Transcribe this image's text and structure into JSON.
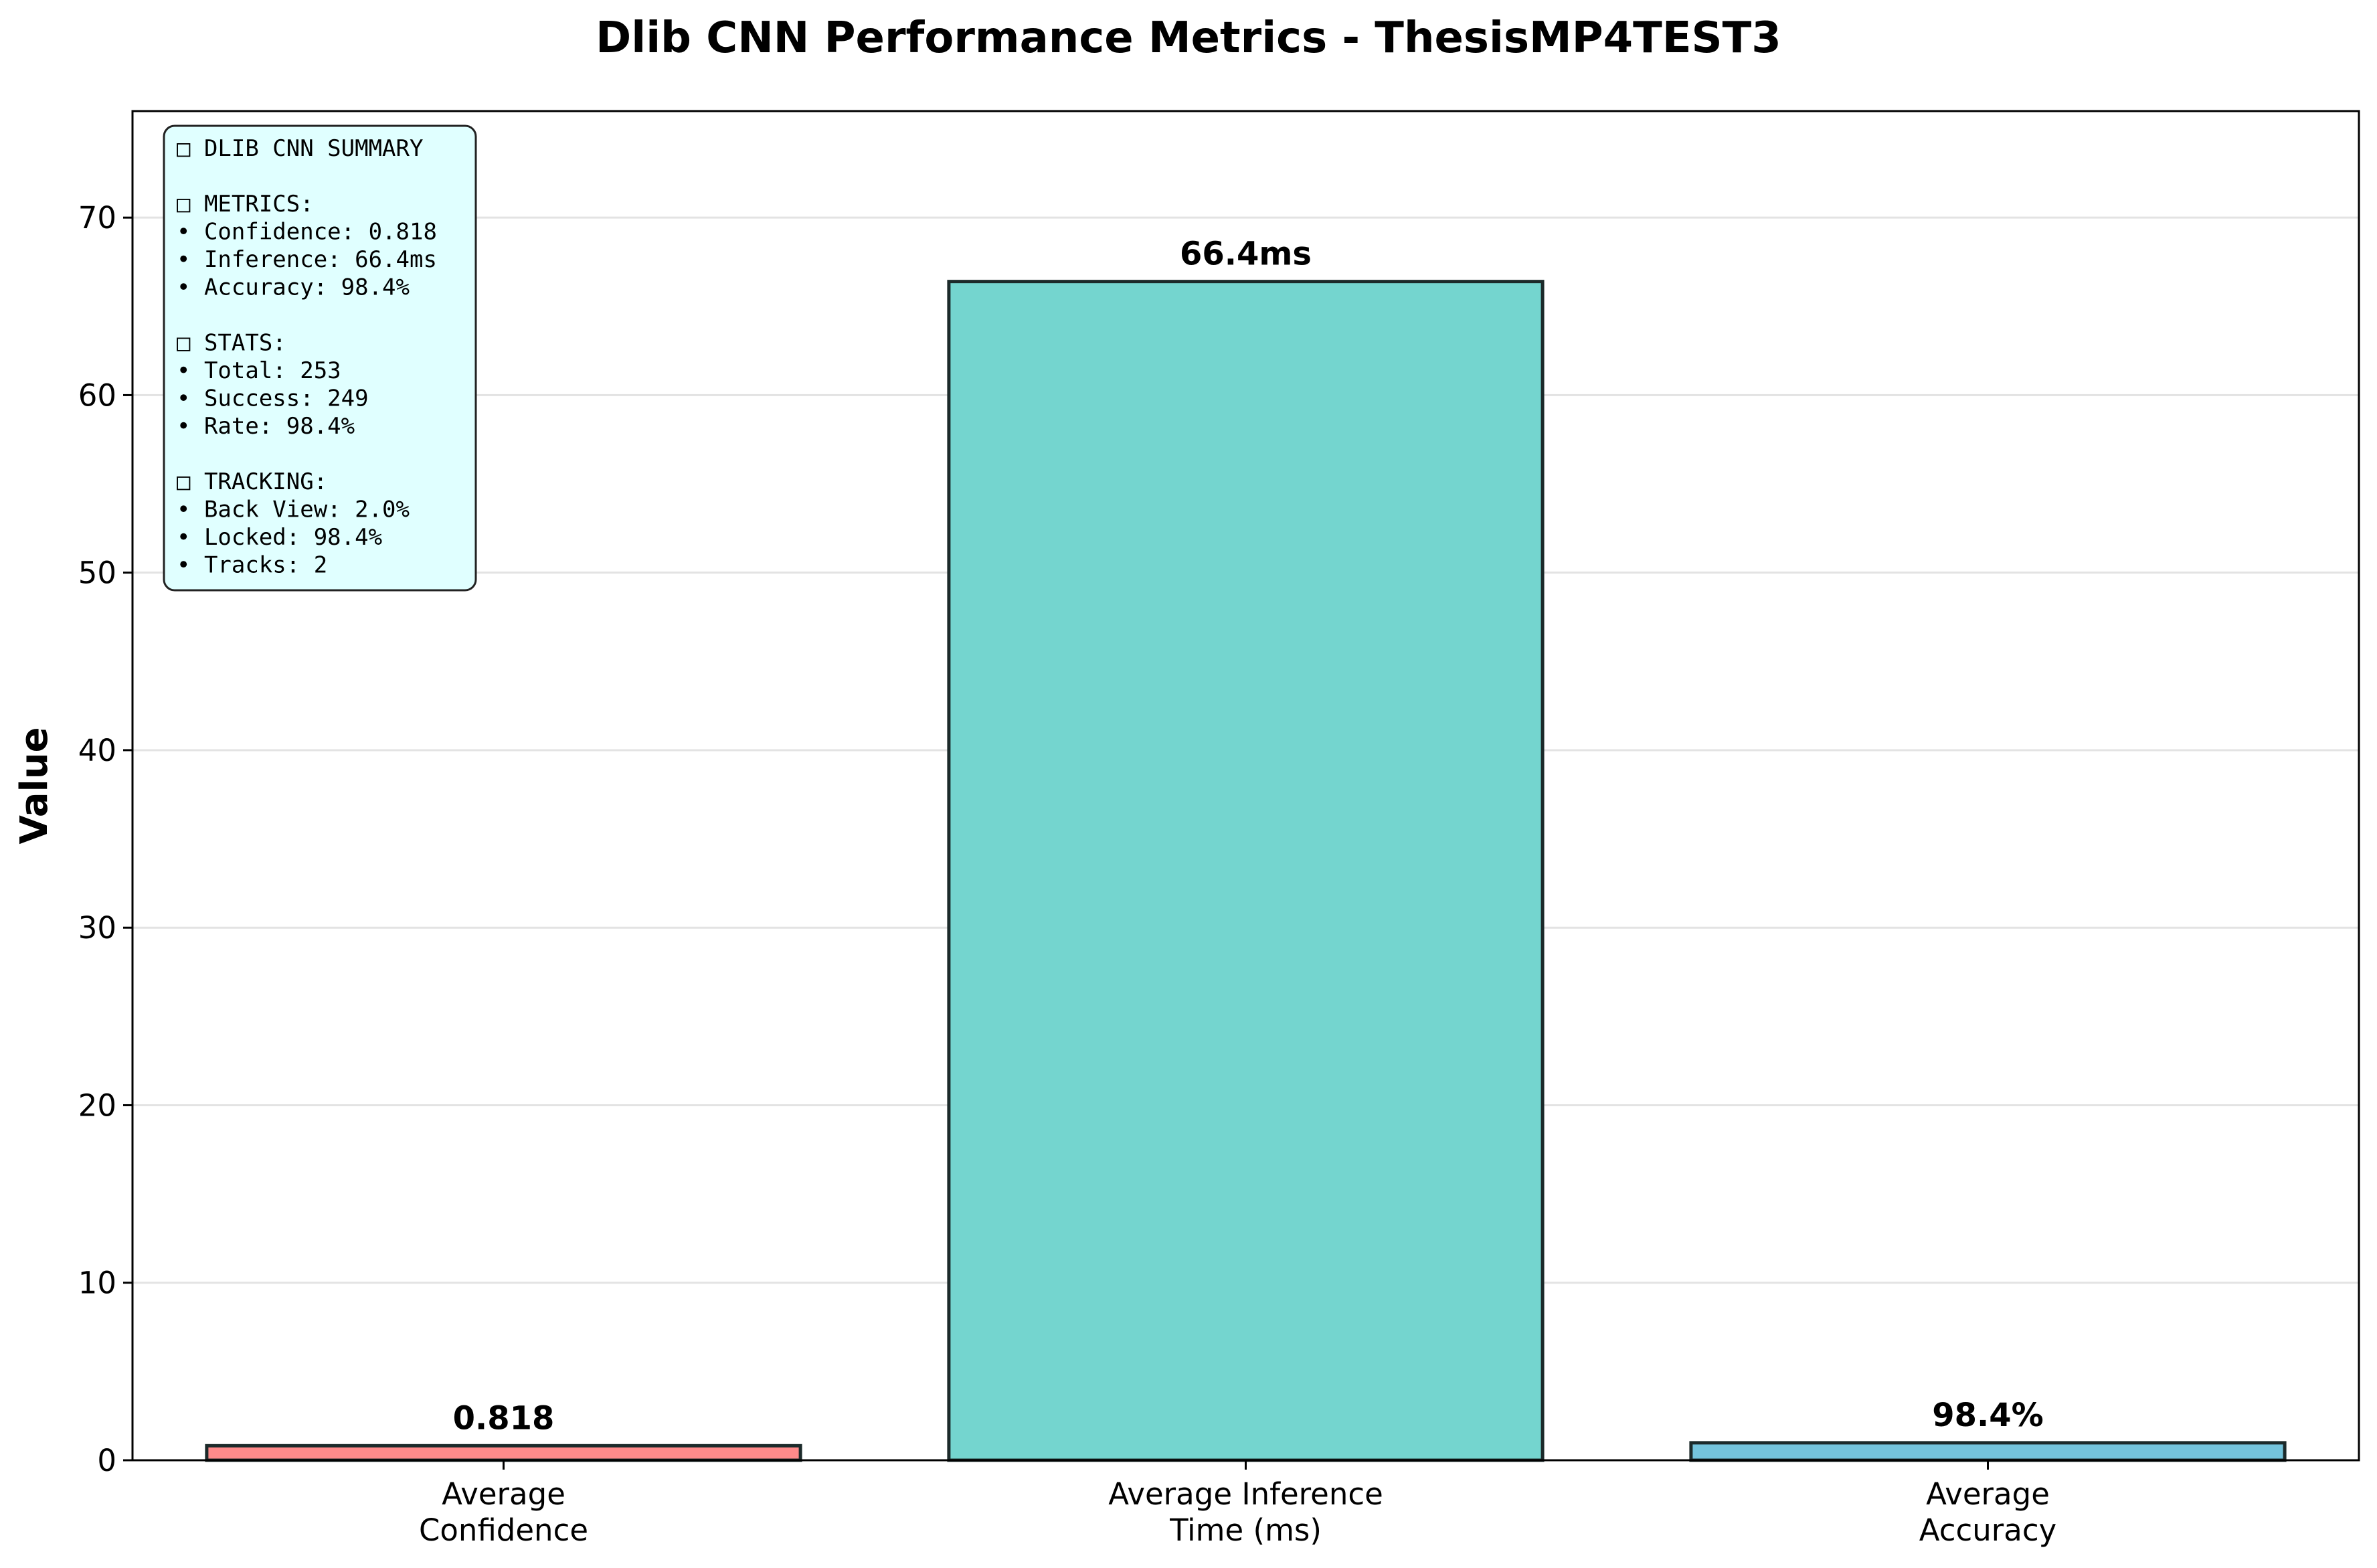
{
  "chart_data": {
    "type": "bar",
    "title": "Dlib CNN Performance Metrics - ThesisMP4TEST3",
    "xlabel": "",
    "ylabel": "Value",
    "categories": [
      "Average\nConfidence",
      "Average Inference\nTime (ms)",
      "Average\nAccuracy"
    ],
    "values": [
      0.818,
      66.4,
      0.984
    ],
    "data_labels": [
      "0.818",
      "66.4ms",
      "98.4%"
    ],
    "colors": [
      "#ff8a8a",
      "#74d5cf",
      "#74c4dc"
    ],
    "ylim": [
      0,
      76
    ],
    "yticks": [
      0,
      10,
      20,
      30,
      40,
      50,
      60,
      70
    ],
    "grid": "horizontal",
    "summary_box": {
      "lines": [
        "□ DLIB CNN SUMMARY",
        "",
        "□ METRICS:",
        "• Confidence: 0.818",
        "• Inference: 66.4ms",
        "• Accuracy: 98.4%",
        "",
        "□ STATS:",
        "• Total: 253",
        "• Success: 249",
        "• Rate: 98.4%",
        "",
        "□ TRACKING:",
        "• Back View: 2.0%",
        "• Locked: 98.4%",
        "• Tracks: 2"
      ],
      "background": "#e0ffff"
    }
  }
}
